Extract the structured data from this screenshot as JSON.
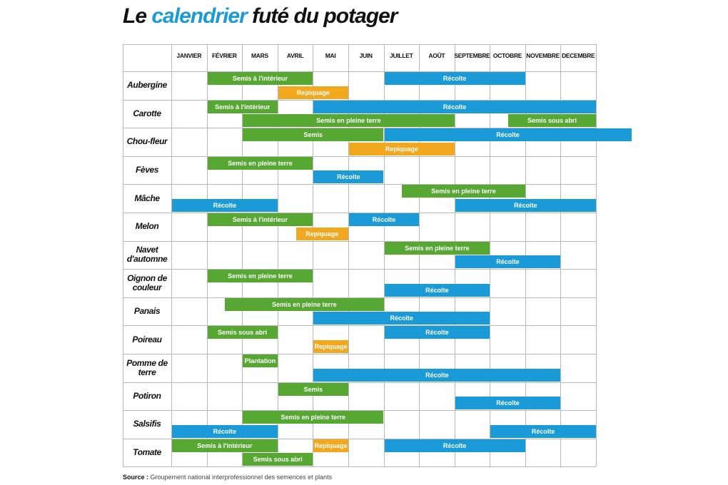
{
  "title": {
    "pre": "Le ",
    "accent": "calendrier",
    "post": " futé du potager"
  },
  "source": {
    "label": "Source :",
    "text": "Groupement national interprofessionnel des semences et plants"
  },
  "colors": {
    "green": "#56a832",
    "blue": "#1a9ad6",
    "orange": "#f2a81e",
    "grid": "#b9b9b9"
  },
  "chart_data": {
    "type": "table",
    "months": [
      "JANVIER",
      "FÉVRIER",
      "MARS",
      "AVRIL",
      "MAI",
      "JUIN",
      "JUILLET",
      "AOÛT",
      "SEPTEMBRE",
      "OCTOBRE",
      "NOVEMBRE",
      "DECEMBRE"
    ],
    "rows": [
      {
        "name": "Aubergine",
        "bars": [
          {
            "label": "Semis à l'intérieur",
            "color": "green",
            "start": 2,
            "end": 4,
            "lane": 0
          },
          {
            "label": "Récolte",
            "color": "blue",
            "start": 7,
            "end": 10,
            "lane": 0
          },
          {
            "label": "Repiquage",
            "color": "orange",
            "start": 4,
            "end": 5,
            "lane": 1
          }
        ]
      },
      {
        "name": "Carotte",
        "bars": [
          {
            "label": "Semis à l'intérieur",
            "color": "green",
            "start": 2,
            "end": 3,
            "lane": 0
          },
          {
            "label": "Récolte",
            "color": "blue",
            "start": 5,
            "end": 12,
            "lane": 0
          },
          {
            "label": "Semis en pleine terre",
            "color": "green",
            "start": 3,
            "end": 8,
            "lane": 1
          },
          {
            "label": "Semis sous abri",
            "color": "green",
            "start": 10.5,
            "end": 12,
            "lane": 1
          }
        ]
      },
      {
        "name": "Chou-fleur",
        "bars": [
          {
            "label": "Semis",
            "color": "green",
            "start": 3,
            "end": 6,
            "lane": 0
          },
          {
            "label": "Récolte",
            "color": "blue",
            "start": 7,
            "end": 13,
            "lane": 0
          },
          {
            "label": "Repiquage",
            "color": "orange",
            "start": 6,
            "end": 8,
            "lane": 1
          }
        ]
      },
      {
        "name": "Fèves",
        "bars": [
          {
            "label": "Semis en pleine terre",
            "color": "green",
            "start": 2,
            "end": 4,
            "lane": 0
          },
          {
            "label": "Récolte",
            "color": "blue",
            "start": 5,
            "end": 6,
            "lane": 1
          }
        ]
      },
      {
        "name": "Mâche",
        "bars": [
          {
            "label": "Semis en pleine terre",
            "color": "green",
            "start": 7.5,
            "end": 10,
            "lane": 0
          },
          {
            "label": "Récolte",
            "color": "blue",
            "start": 1,
            "end": 3,
            "lane": 1
          },
          {
            "label": "Récolte",
            "color": "blue",
            "start": 9,
            "end": 12,
            "lane": 1
          }
        ]
      },
      {
        "name": "Melon",
        "bars": [
          {
            "label": "Semis à l'intérieur",
            "color": "green",
            "start": 2,
            "end": 4,
            "lane": 0
          },
          {
            "label": "Récolte",
            "color": "blue",
            "start": 6,
            "end": 7,
            "lane": 0
          },
          {
            "label": "Repiquage",
            "color": "orange",
            "start": 4.5,
            "end": 5,
            "lane": 1
          }
        ]
      },
      {
        "name": "Navet d'automne",
        "bars": [
          {
            "label": "Semis en pleine terre",
            "color": "green",
            "start": 7,
            "end": 9,
            "lane": 0
          },
          {
            "label": "Récolte",
            "color": "blue",
            "start": 9,
            "end": 11,
            "lane": 1
          }
        ]
      },
      {
        "name": "Oignon de couleur",
        "bars": [
          {
            "label": "Semis en pleine terre",
            "color": "green",
            "start": 2,
            "end": 4,
            "lane": 0
          },
          {
            "label": "Récolte",
            "color": "blue",
            "start": 7,
            "end": 9,
            "lane": 1
          }
        ]
      },
      {
        "name": "Panais",
        "bars": [
          {
            "label": "Semis en pleine terre",
            "color": "green",
            "start": 2.5,
            "end": 6,
            "lane": 0
          },
          {
            "label": "Récolte",
            "color": "blue",
            "start": 5,
            "end": 9,
            "lane": 1
          }
        ]
      },
      {
        "name": "Poireau",
        "bars": [
          {
            "label": "Semis sous abri",
            "color": "green",
            "start": 2,
            "end": 3,
            "lane": 0
          },
          {
            "label": "Récolte",
            "color": "blue",
            "start": 7,
            "end": 9,
            "lane": 0
          },
          {
            "label": "Repiquage",
            "color": "orange",
            "start": 5,
            "end": 5,
            "lane": 1
          }
        ]
      },
      {
        "name": "Pomme de terre",
        "bars": [
          {
            "label": "Plantation",
            "color": "green",
            "start": 3,
            "end": 3,
            "lane": 0
          },
          {
            "label": "Récolte",
            "color": "blue",
            "start": 5,
            "end": 11,
            "lane": 1
          }
        ]
      },
      {
        "name": "Potiron",
        "bars": [
          {
            "label": "Semis",
            "color": "green",
            "start": 4,
            "end": 5,
            "lane": 0
          },
          {
            "label": "Récolte",
            "color": "blue",
            "start": 9,
            "end": 11,
            "lane": 1
          }
        ]
      },
      {
        "name": "Salsifis",
        "bars": [
          {
            "label": "Semis en pleine terre",
            "color": "green",
            "start": 3,
            "end": 6,
            "lane": 0
          },
          {
            "label": "Récolte",
            "color": "blue",
            "start": 1,
            "end": 3,
            "lane": 1
          },
          {
            "label": "Récolte",
            "color": "blue",
            "start": 10,
            "end": 12,
            "lane": 1
          }
        ]
      },
      {
        "name": "Tomate",
        "bars": [
          {
            "label": "Semis à l'intérieur",
            "color": "green",
            "start": 1,
            "end": 3,
            "lane": 0
          },
          {
            "label": "Repiquage",
            "color": "orange",
            "start": 5,
            "end": 5,
            "lane": 0
          },
          {
            "label": "Récolte",
            "color": "blue",
            "start": 7,
            "end": 10,
            "lane": 0
          },
          {
            "label": "Semis sous abri",
            "color": "green",
            "start": 3,
            "end": 4,
            "lane": 1
          }
        ]
      }
    ]
  }
}
